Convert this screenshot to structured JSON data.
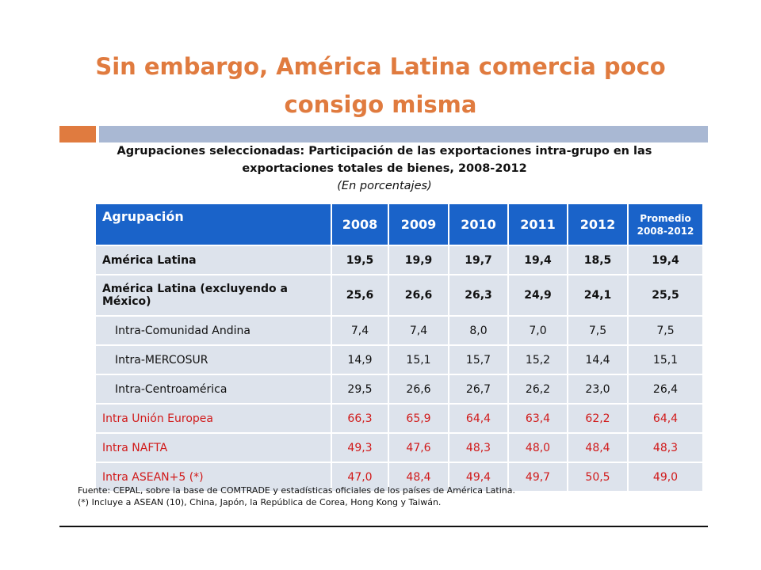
{
  "slide": {
    "title_line1": "Sin embargo, América Latina comercia poco",
    "title_line2": "consigo misma"
  },
  "table_caption": {
    "line1": "Agrupaciones seleccionadas: Participación de las exportaciones intra-grupo en las",
    "line2": "exportaciones totales de bienes, 2008-2012",
    "units": "(En porcentajes)"
  },
  "table": {
    "headers": [
      "Agrupación",
      "2008",
      "2009",
      "2010",
      "2011",
      "2012"
    ],
    "avg_header_line1": "Promedio",
    "avg_header_line2": "2008-2012",
    "rows": [
      {
        "label": "América Latina",
        "values": [
          "19,5",
          "19,9",
          "19,7",
          "19,4",
          "18,5",
          "19,4"
        ]
      },
      {
        "label": "América Latina (excluyendo a México)",
        "values": [
          "25,6",
          "26,6",
          "26,3",
          "24,9",
          "24,1",
          "25,5"
        ]
      },
      {
        "label": "Intra-Comunidad Andina",
        "values": [
          "7,4",
          "7,4",
          "8,0",
          "7,0",
          "7,5",
          "7,5"
        ]
      },
      {
        "label": "Intra-MERCOSUR",
        "values": [
          "14,9",
          "15,1",
          "15,7",
          "15,2",
          "14,4",
          "15,1"
        ]
      },
      {
        "label": "Intra-Centroamérica",
        "values": [
          "29,5",
          "26,6",
          "26,7",
          "26,2",
          "23,0",
          "26,4"
        ]
      },
      {
        "label": "Intra Unión Europea",
        "values": [
          "66,3",
          "65,9",
          "64,4",
          "63,4",
          "62,2",
          "64,4"
        ]
      },
      {
        "label": "Intra NAFTA",
        "values": [
          "49,3",
          "47,6",
          "48,3",
          "48,0",
          "48,4",
          "48,3"
        ]
      },
      {
        "label": "Intra ASEAN+5 (*)",
        "values": [
          "47,0",
          "48,4",
          "49,4",
          "49,7",
          "50,5",
          "49,0"
        ]
      }
    ]
  },
  "footnotes": {
    "source": "Fuente: CEPAL, sobre la base de COMTRADE y estadísticas oficiales de los países de América Latina.",
    "note": "(*) Incluye a ASEAN (10), China, Japón, la República de Corea, Hong Kong y Taiwán."
  },
  "colors": {
    "title": "#e07b3f",
    "header_bg": "#1a63c9",
    "row_bg": "#dde3ec",
    "highlight_text": "#d11a1a"
  }
}
